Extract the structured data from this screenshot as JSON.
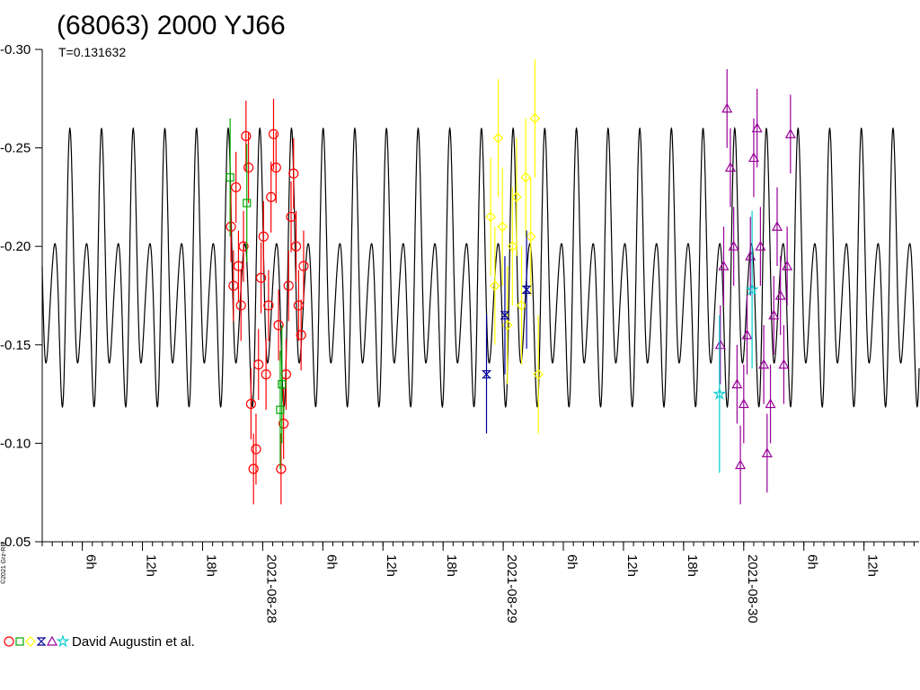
{
  "chart_data": {
    "type": "scatter",
    "title": "(68063) 2000 YJ66",
    "subtitle": "T=0.131632",
    "period_days": 0.131632,
    "xlabel": "",
    "ylabel": "",
    "ylim": [
      -0.05,
      -0.3
    ],
    "yticks": [
      -0.3,
      -0.25,
      -0.2,
      -0.15,
      -0.1,
      -0.05
    ],
    "ytick_labels": [
      "-0.30",
      "-0.25",
      "-0.20",
      "-0.15",
      "-0.10",
      "-0.05"
    ],
    "xlim": [
      "2021-08-27T02:00",
      "2021-08-30T17:30"
    ],
    "xticks": [
      {
        "t": "2021-08-27T06:00",
        "label": "6h"
      },
      {
        "t": "2021-08-27T12:00",
        "label": "12h"
      },
      {
        "t": "2021-08-27T18:00",
        "label": "18h"
      },
      {
        "t": "2021-08-28T00:00",
        "label": "2021-08-28"
      },
      {
        "t": "2021-08-28T06:00",
        "label": "6h"
      },
      {
        "t": "2021-08-28T12:00",
        "label": "12h"
      },
      {
        "t": "2021-08-28T18:00",
        "label": "18h"
      },
      {
        "t": "2021-08-29T00:00",
        "label": "2021-08-29"
      },
      {
        "t": "2021-08-29T06:00",
        "label": "6h"
      },
      {
        "t": "2021-08-29T12:00",
        "label": "12h"
      },
      {
        "t": "2021-08-29T18:00",
        "label": "18h"
      },
      {
        "t": "2021-08-30T00:00",
        "label": "2021-08-30"
      },
      {
        "t": "2021-08-30T06:00",
        "label": "6h"
      },
      {
        "t": "2021-08-30T12:00",
        "label": "12h"
      }
    ],
    "model_curve": {
      "color": "#000000",
      "mean": -0.18,
      "amplitudes": [
        0.02,
        0.05,
        0.012
      ],
      "harmonic_phases": [
        0.3,
        1.1,
        2.2
      ],
      "phase0": 0.2
    },
    "series": [
      {
        "color": "#ff0000",
        "marker": "circle",
        "window": [
          "2021-08-27T20:30",
          "2021-08-28T04:30"
        ],
        "errorbar": 0.018,
        "points": [
          {
            "t": "2021-08-27T20:50",
            "y": -0.21
          },
          {
            "t": "2021-08-27T21:05",
            "y": -0.18
          },
          {
            "t": "2021-08-27T21:20",
            "y": -0.23
          },
          {
            "t": "2021-08-27T21:35",
            "y": -0.19
          },
          {
            "t": "2021-08-27T21:50",
            "y": -0.17
          },
          {
            "t": "2021-08-27T22:05",
            "y": -0.2
          },
          {
            "t": "2021-08-27T22:20",
            "y": -0.256
          },
          {
            "t": "2021-08-27T22:35",
            "y": -0.24
          },
          {
            "t": "2021-08-27T22:50",
            "y": -0.12
          },
          {
            "t": "2021-08-27T23:05",
            "y": -0.087
          },
          {
            "t": "2021-08-27T23:20",
            "y": -0.097
          },
          {
            "t": "2021-08-27T23:35",
            "y": -0.14
          },
          {
            "t": "2021-08-27T23:50",
            "y": -0.184
          },
          {
            "t": "2021-08-28T00:05",
            "y": -0.205
          },
          {
            "t": "2021-08-28T00:20",
            "y": -0.135
          },
          {
            "t": "2021-08-28T00:35",
            "y": -0.17
          },
          {
            "t": "2021-08-28T00:50",
            "y": -0.225
          },
          {
            "t": "2021-08-28T01:05",
            "y": -0.257
          },
          {
            "t": "2021-08-28T01:20",
            "y": -0.24
          },
          {
            "t": "2021-08-28T01:35",
            "y": -0.16
          },
          {
            "t": "2021-08-28T01:50",
            "y": -0.087
          },
          {
            "t": "2021-08-28T02:05",
            "y": -0.11
          },
          {
            "t": "2021-08-28T02:20",
            "y": -0.135
          },
          {
            "t": "2021-08-28T02:35",
            "y": -0.18
          },
          {
            "t": "2021-08-28T02:50",
            "y": -0.215
          },
          {
            "t": "2021-08-28T03:05",
            "y": -0.237
          },
          {
            "t": "2021-08-28T03:20",
            "y": -0.2
          },
          {
            "t": "2021-08-28T03:35",
            "y": -0.17
          },
          {
            "t": "2021-08-28T03:50",
            "y": -0.155
          },
          {
            "t": "2021-08-28T04:05",
            "y": -0.19
          }
        ]
      },
      {
        "color": "#00aa00",
        "marker": "square",
        "window": [
          "2021-08-27T20:30",
          "2021-08-28T02:30"
        ],
        "errorbar": 0.03,
        "points": [
          {
            "t": "2021-08-27T20:45",
            "y": -0.235
          },
          {
            "t": "2021-08-27T22:25",
            "y": -0.222
          },
          {
            "t": "2021-08-28T01:55",
            "y": -0.13
          },
          {
            "t": "2021-08-28T01:45",
            "y": -0.117
          }
        ]
      },
      {
        "color": "#ffff00",
        "marker": "diamond",
        "window": [
          "2021-08-28T22:00",
          "2021-08-29T05:00"
        ],
        "errorbar": 0.03,
        "points": [
          {
            "t": "2021-08-28T22:45",
            "y": -0.215
          },
          {
            "t": "2021-08-28T23:10",
            "y": -0.18
          },
          {
            "t": "2021-08-28T23:30",
            "y": -0.255
          },
          {
            "t": "2021-08-28T23:55",
            "y": -0.21
          },
          {
            "t": "2021-08-29T00:25",
            "y": -0.16
          },
          {
            "t": "2021-08-29T00:55",
            "y": -0.2
          },
          {
            "t": "2021-08-29T01:20",
            "y": -0.225
          },
          {
            "t": "2021-08-29T01:50",
            "y": -0.17
          },
          {
            "t": "2021-08-29T02:15",
            "y": -0.235
          },
          {
            "t": "2021-08-29T02:45",
            "y": -0.205
          },
          {
            "t": "2021-08-29T03:10",
            "y": -0.265
          },
          {
            "t": "2021-08-29T03:30",
            "y": -0.135
          }
        ]
      },
      {
        "color": "#000099",
        "marker": "bowtie",
        "window": [
          "2021-08-28T22:00",
          "2021-08-29T04:00"
        ],
        "errorbar": 0.03,
        "points": [
          {
            "t": "2021-08-28T22:20",
            "y": -0.135
          },
          {
            "t": "2021-08-29T00:10",
            "y": -0.165
          },
          {
            "t": "2021-08-29T02:20",
            "y": -0.178
          }
        ]
      },
      {
        "color": "#990099",
        "marker": "triangle",
        "window": [
          "2021-08-29T21:00",
          "2021-08-30T05:00"
        ],
        "errorbar": 0.02,
        "points": [
          {
            "t": "2021-08-29T21:40",
            "y": -0.15
          },
          {
            "t": "2021-08-29T22:00",
            "y": -0.19
          },
          {
            "t": "2021-08-29T22:20",
            "y": -0.27
          },
          {
            "t": "2021-08-29T22:40",
            "y": -0.24
          },
          {
            "t": "2021-08-29T23:00",
            "y": -0.2
          },
          {
            "t": "2021-08-29T23:20",
            "y": -0.13
          },
          {
            "t": "2021-08-29T23:40",
            "y": -0.089
          },
          {
            "t": "2021-08-30T00:00",
            "y": -0.12
          },
          {
            "t": "2021-08-30T00:20",
            "y": -0.155
          },
          {
            "t": "2021-08-30T00:40",
            "y": -0.195
          },
          {
            "t": "2021-08-30T01:00",
            "y": -0.245
          },
          {
            "t": "2021-08-30T01:20",
            "y": -0.26
          },
          {
            "t": "2021-08-30T01:40",
            "y": -0.2
          },
          {
            "t": "2021-08-30T02:00",
            "y": -0.14
          },
          {
            "t": "2021-08-30T02:20",
            "y": -0.095
          },
          {
            "t": "2021-08-30T02:40",
            "y": -0.12
          },
          {
            "t": "2021-08-30T03:00",
            "y": -0.165
          },
          {
            "t": "2021-08-30T03:20",
            "y": -0.21
          },
          {
            "t": "2021-08-30T03:40",
            "y": -0.175
          },
          {
            "t": "2021-08-30T04:00",
            "y": -0.14
          },
          {
            "t": "2021-08-30T04:20",
            "y": -0.19
          },
          {
            "t": "2021-08-30T04:40",
            "y": -0.257
          }
        ]
      },
      {
        "color": "#00cccc",
        "marker": "star",
        "window": [
          "2021-08-29T21:00",
          "2021-08-30T02:00"
        ],
        "errorbar": 0.04,
        "points": [
          {
            "t": "2021-08-29T21:35",
            "y": -0.125
          },
          {
            "t": "2021-08-30T00:50",
            "y": -0.178
          }
        ]
      }
    ],
    "legend": {
      "label": "David Augustin et al.",
      "markers": [
        "circle",
        "square",
        "diamond",
        "bowtie",
        "triangle",
        "star"
      ],
      "position": "bottom-left"
    },
    "side_note": "©2021 Grz-RB",
    "grid": false
  }
}
